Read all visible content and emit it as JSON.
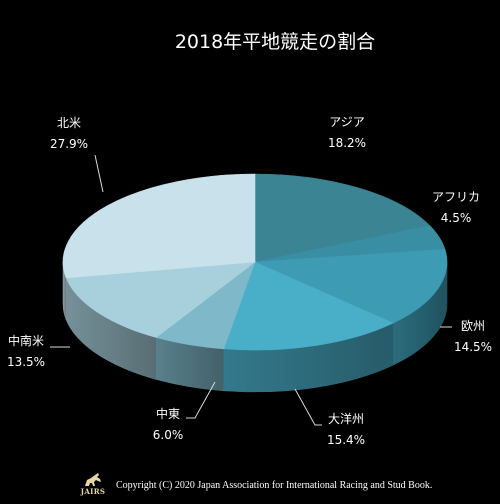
{
  "chart_data": {
    "type": "pie",
    "title": "2018年平地競走の割合",
    "categories": [
      "アジア",
      "アフリカ",
      "欧州",
      "大洋州",
      "中東",
      "中南米",
      "北米"
    ],
    "values": [
      18.2,
      4.5,
      14.5,
      15.4,
      6.0,
      13.5,
      27.9
    ],
    "percent_labels": [
      "18.2%",
      "4.5%",
      "14.5%",
      "15.4%",
      "6.0%",
      "13.5%",
      "27.9%"
    ],
    "start_angle_deg": 0,
    "direction": "clockwise",
    "colors": [
      "#3a8494",
      "#3a8ea3",
      "#3d9bb3",
      "#49aec8",
      "#7fb8c8",
      "#a8cfdc",
      "#c9e1ea"
    ],
    "legend": "none"
  },
  "footer": {
    "logo_text": "JAIRS",
    "copyright": "Copyright (C) 2020 Japan Association for International Racing and Stud Book."
  }
}
